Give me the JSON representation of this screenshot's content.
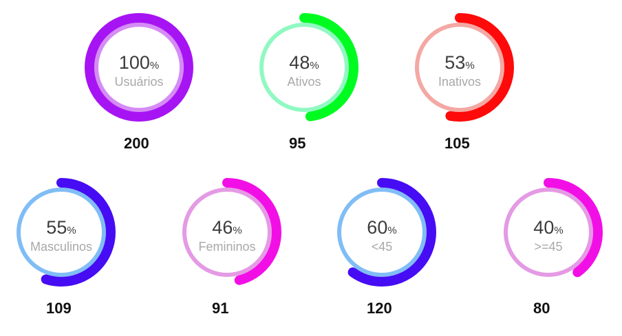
{
  "gauges": [
    {
      "id": "usuarios",
      "percent": 100,
      "label": "Usuários",
      "count": "200",
      "arc_color": "#a714f3",
      "ring_color": "#d58cf4"
    },
    {
      "id": "ativos",
      "percent": 48,
      "label": "Ativos",
      "count": "95",
      "arc_color": "#00fb21",
      "ring_color": "#90f9c2"
    },
    {
      "id": "inativos",
      "percent": 53,
      "label": "Inativos",
      "count": "105",
      "arc_color": "#fe0a0a",
      "ring_color": "#f4a8a4"
    },
    {
      "id": "masculinos",
      "percent": 55,
      "label": "Masculinos",
      "count": "109",
      "arc_color": "#460cf3",
      "ring_color": "#80bdf6"
    },
    {
      "id": "femininos",
      "percent": 46,
      "label": "Femininos",
      "count": "91",
      "arc_color": "#f20fe6",
      "ring_color": "#e49ae4"
    },
    {
      "id": "menor-45",
      "percent": 60,
      "label": "<45",
      "count": "120",
      "arc_color": "#460cf3",
      "ring_color": "#80bdf6"
    },
    {
      "id": "maior-45",
      "percent": 40,
      "label": ">=45",
      "count": "80",
      "arc_color": "#f20fe6",
      "ring_color": "#e49ae4"
    }
  ],
  "percent_sign": "%"
}
